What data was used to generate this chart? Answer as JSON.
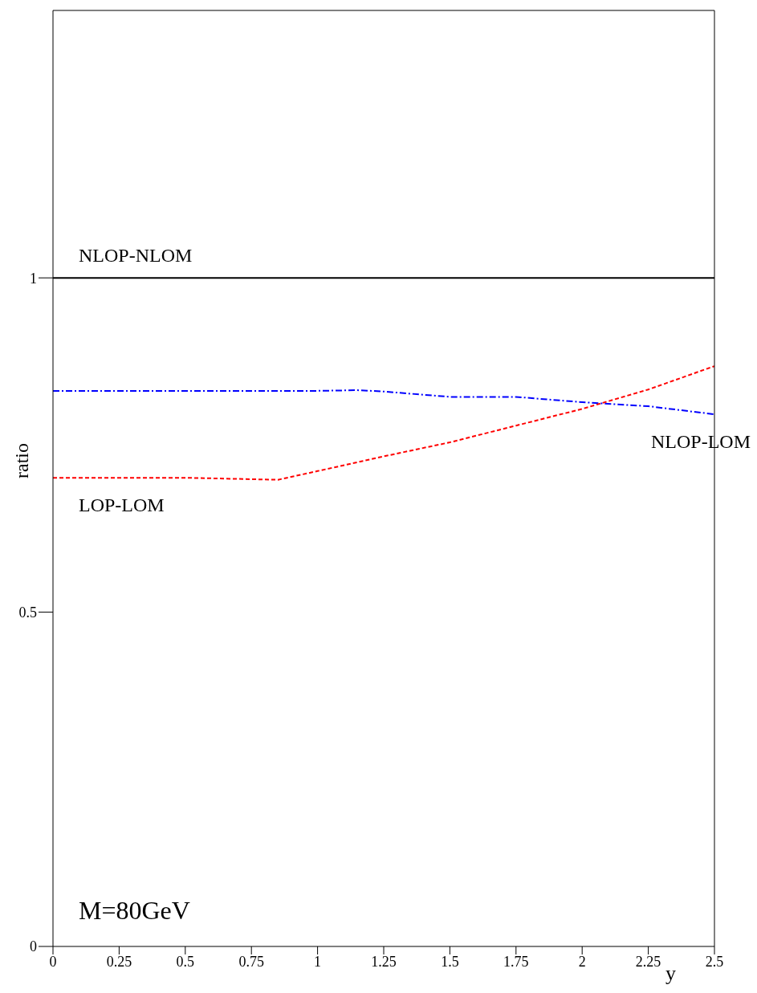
{
  "chart_data": {
    "type": "line",
    "xlabel": "y",
    "ylabel": "ratio",
    "xlim": [
      0,
      2.5
    ],
    "ylim": [
      0,
      1.4
    ],
    "xticks": [
      0,
      0.25,
      0.5,
      0.75,
      1,
      1.25,
      1.5,
      1.75,
      2,
      2.25,
      2.5
    ],
    "yticks": [
      0,
      0.5,
      1
    ],
    "marker": "none",
    "annotations": [
      "M=80GeV"
    ],
    "series": [
      {
        "name": "NLOP-NLOM",
        "color": "#000000",
        "line_style": "solid",
        "x": [
          0,
          2.5
        ],
        "values": [
          1,
          1
        ]
      },
      {
        "name": "NLOP-LOM",
        "color": "#0000ff",
        "line_style": "dashdot",
        "x": [
          0,
          0.5,
          1,
          1.15,
          1.25,
          1.5,
          1.75,
          2,
          2.25,
          2.5
        ],
        "values": [
          0.831,
          0.831,
          0.831,
          0.832,
          0.83,
          0.822,
          0.822,
          0.814,
          0.808,
          0.796
        ]
      },
      {
        "name": "LOP-LOM",
        "color": "#ff0000",
        "line_style": "dashed",
        "x": [
          0,
          0.5,
          0.85,
          1,
          1.25,
          1.5,
          1.75,
          2,
          2.25,
          2.5
        ],
        "values": [
          0.701,
          0.701,
          0.698,
          0.711,
          0.733,
          0.754,
          0.779,
          0.804,
          0.833,
          0.868
        ]
      }
    ]
  }
}
